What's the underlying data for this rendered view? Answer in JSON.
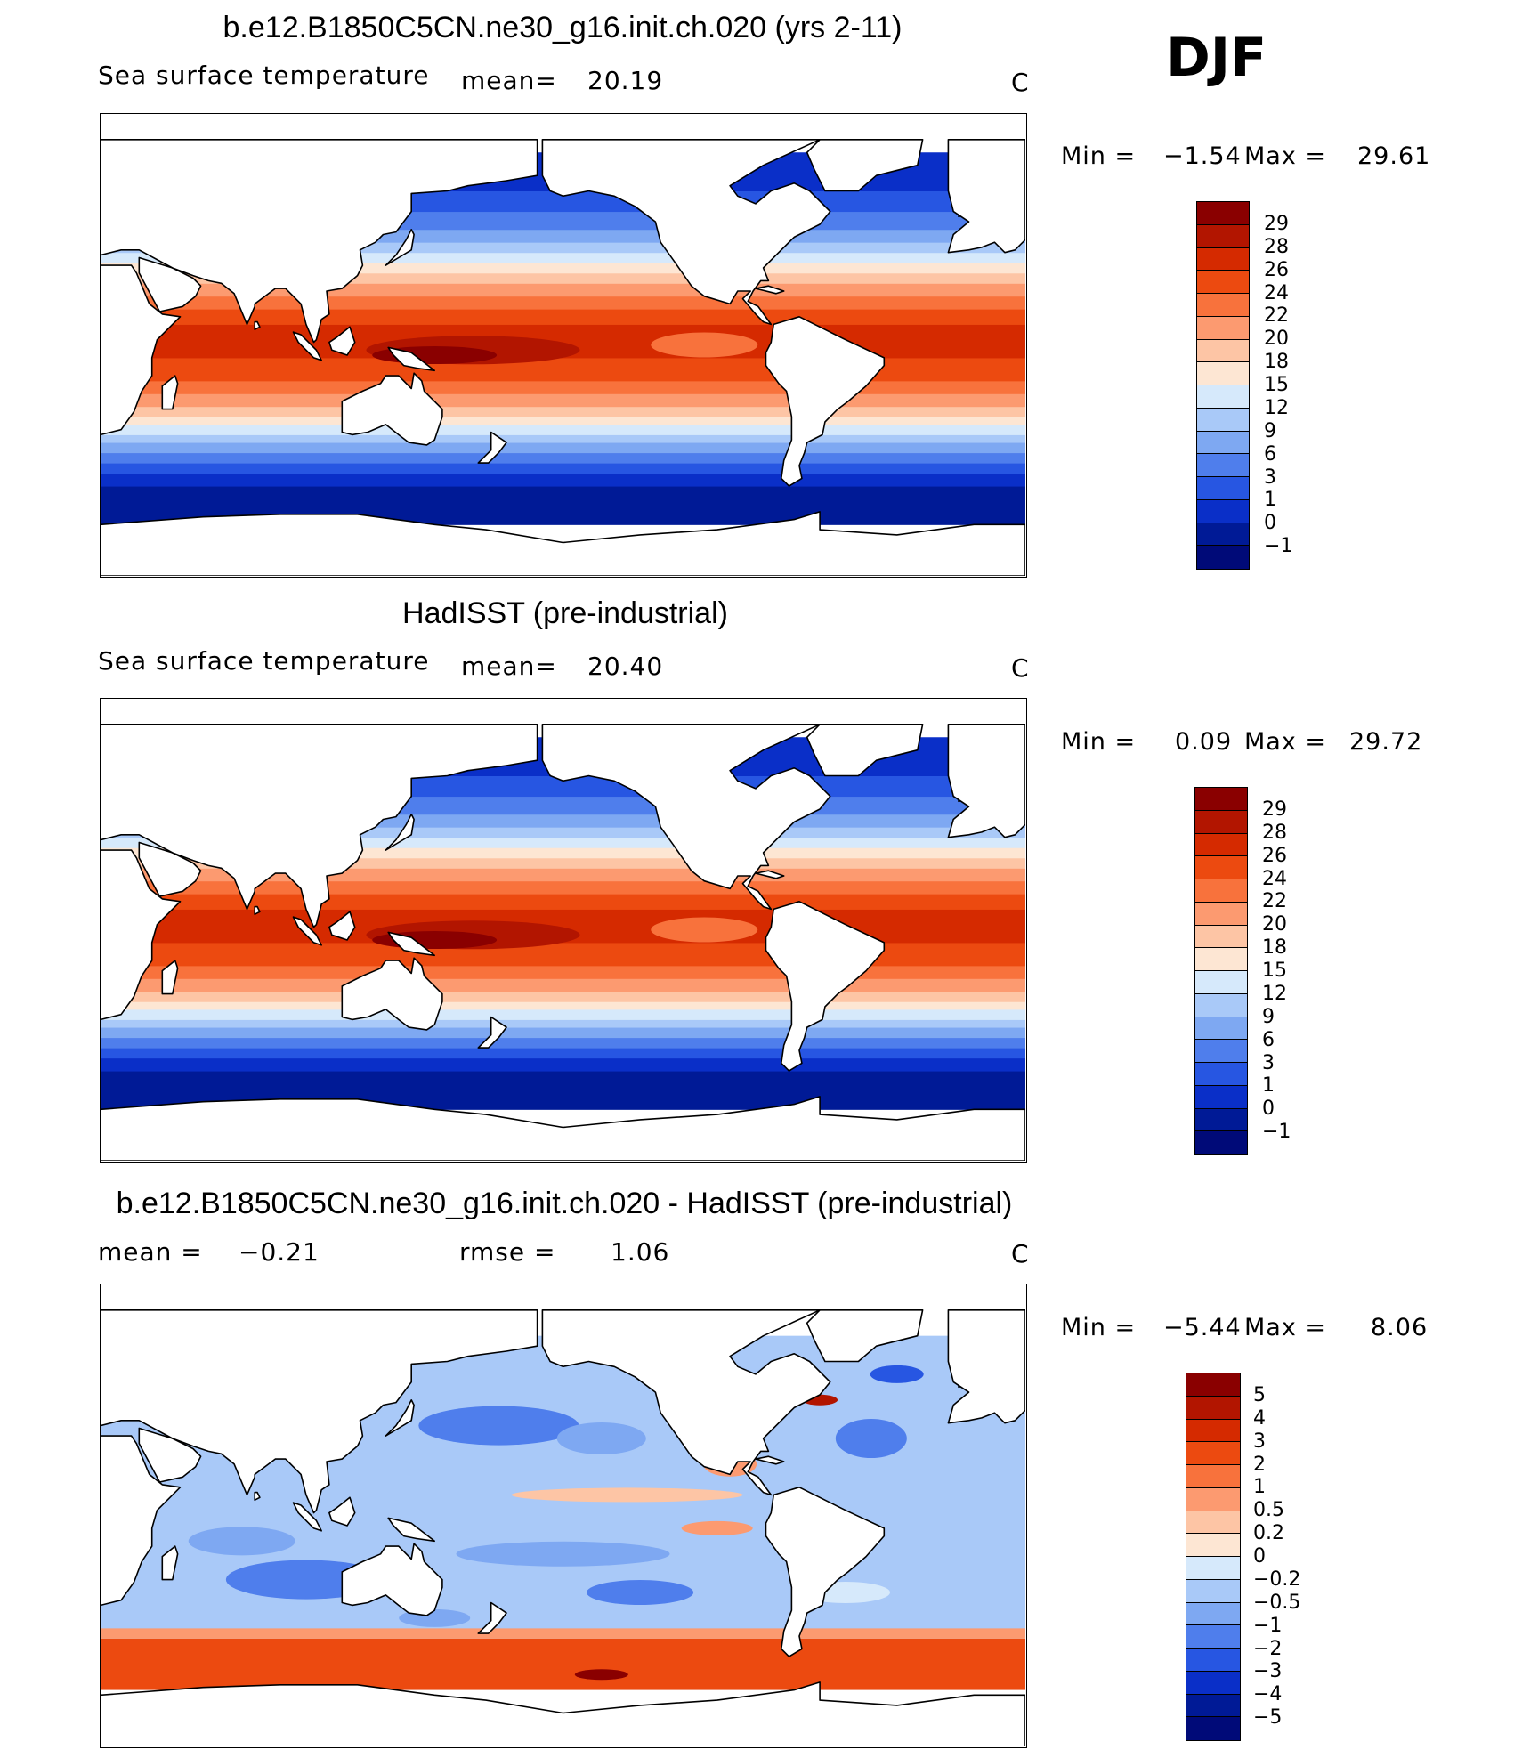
{
  "season": "DJF",
  "units": "C",
  "panels": [
    {
      "id": "model",
      "title": "b.e12.B1850C5CN.ne30_g16.init.ch.020 (yrs 2-11)",
      "variable": "Sea surface temperature",
      "stat1_label": "mean=",
      "stat1_value": "20.19",
      "stat2_label": "",
      "stat2_value": "",
      "units": "C",
      "min_label": "Min =",
      "min_value": "−1.54",
      "max_label": "Max =",
      "max_value": "29.61",
      "colorbar": {
        "labels": [
          "29",
          "28",
          "26",
          "24",
          "22",
          "20",
          "18",
          "15",
          "12",
          "9",
          "6",
          "3",
          "1",
          "0",
          "−1"
        ],
        "colors": [
          "#8a0000",
          "#b21500",
          "#d52a00",
          "#ec4a10",
          "#f8723c",
          "#fc9a70",
          "#fdc5a5",
          "#fde6d3",
          "#d6e9fb",
          "#a9c9f8",
          "#7ea8f2",
          "#4f7eec",
          "#2756e2",
          "#0a2fc8",
          "#001a96",
          "#000a78"
        ]
      },
      "map_style": "sst"
    },
    {
      "id": "obs",
      "title": "HadISST (pre-industrial)",
      "variable": "Sea surface temperature",
      "stat1_label": "mean=",
      "stat1_value": "20.40",
      "stat2_label": "",
      "stat2_value": "",
      "units": "C",
      "min_label": "Min =",
      "min_value": "0.09",
      "max_label": "Max =",
      "max_value": "29.72",
      "colorbar": {
        "labels": [
          "29",
          "28",
          "26",
          "24",
          "22",
          "20",
          "18",
          "15",
          "12",
          "9",
          "6",
          "3",
          "1",
          "0",
          "−1"
        ],
        "colors": [
          "#8a0000",
          "#b21500",
          "#d52a00",
          "#ec4a10",
          "#f8723c",
          "#fc9a70",
          "#fdc5a5",
          "#fde6d3",
          "#d6e9fb",
          "#a9c9f8",
          "#7ea8f2",
          "#4f7eec",
          "#2756e2",
          "#0a2fc8",
          "#001a96",
          "#000a78"
        ]
      },
      "map_style": "sst"
    },
    {
      "id": "diff",
      "title": "b.e12.B1850C5CN.ne30_g16.init.ch.020 - HadISST (pre-industrial)",
      "variable": "",
      "stat1_label": "mean =",
      "stat1_value": "−0.21",
      "stat2_label": "rmse =",
      "stat2_value": "1.06",
      "units": "C",
      "min_label": "Min =",
      "min_value": "−5.44",
      "max_label": "Max =",
      "max_value": "8.06",
      "colorbar": {
        "labels": [
          "5",
          "4",
          "3",
          "2",
          "1",
          "0.5",
          "0.2",
          "0",
          "−0.2",
          "−0.5",
          "−1",
          "−2",
          "−3",
          "−4",
          "−5"
        ],
        "colors": [
          "#8a0000",
          "#b21500",
          "#d52a00",
          "#ec4a10",
          "#f8723c",
          "#fc9a70",
          "#fdc5a5",
          "#fde6d3",
          "#d6e9fb",
          "#a9c9f8",
          "#7ea8f2",
          "#4f7eec",
          "#2756e2",
          "#0a2fc8",
          "#001a96",
          "#000a78"
        ]
      },
      "map_style": "diff"
    }
  ]
}
